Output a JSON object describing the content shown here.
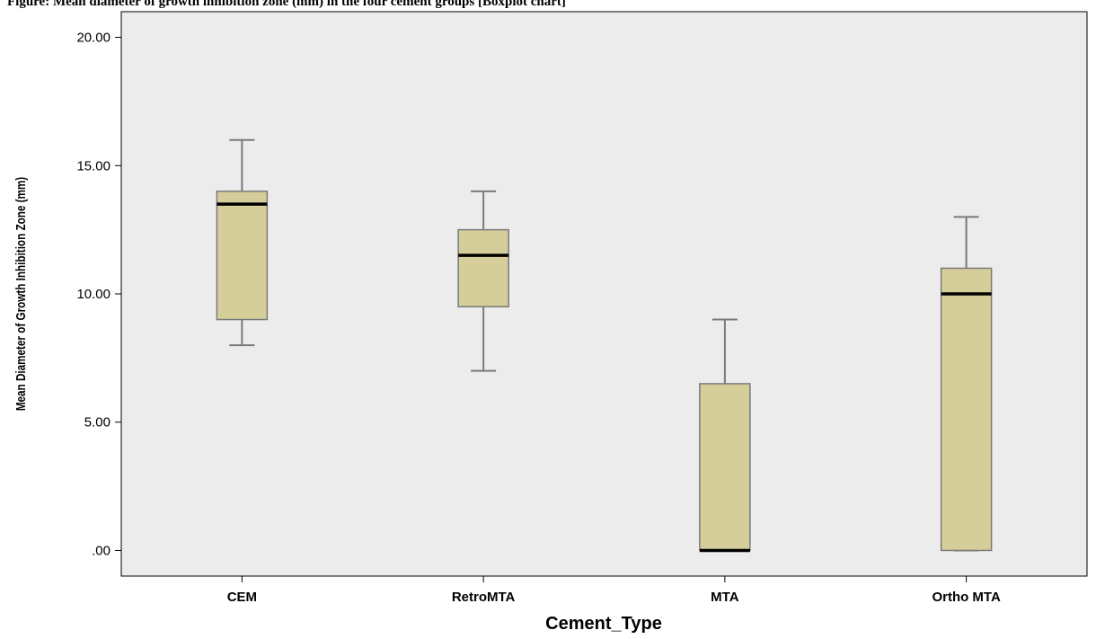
{
  "caption": "Figure: Mean diameter of growth inhibition zone (mm) in the four cement groups [Boxplot chart]",
  "chart_data": {
    "type": "boxplot",
    "xlabel": "Cement_Type",
    "ylabel": "Mean Diameter of Growth Inhibition Zone  (mm)",
    "ylim": [
      -1,
      21
    ],
    "yticks": [
      {
        "value": 0,
        "label": ".00"
      },
      {
        "value": 5,
        "label": "5.00"
      },
      {
        "value": 10,
        "label": "10.00"
      },
      {
        "value": 15,
        "label": "15.00"
      },
      {
        "value": 20,
        "label": "20.00"
      }
    ],
    "categories": [
      "CEM",
      "RetroMTA",
      "MTA",
      "Ortho MTA"
    ],
    "boxes": [
      {
        "category": "CEM",
        "min": 8,
        "q1": 9,
        "median": 13.5,
        "q3": 14,
        "max": 16
      },
      {
        "category": "RetroMTA",
        "min": 7,
        "q1": 9.5,
        "median": 11.5,
        "q3": 12.5,
        "max": 14
      },
      {
        "category": "MTA",
        "min": 0,
        "q1": 0,
        "median": 0,
        "q3": 6.5,
        "max": 9
      },
      {
        "category": "Ortho MTA",
        "min": 0,
        "q1": 0,
        "median": 10,
        "q3": 11,
        "max": 13
      }
    ],
    "colors": {
      "plot_background": "#ececec",
      "box_fill": "#d5cd9a",
      "box_stroke": "#7a7a7a",
      "median": "#000000"
    },
    "grid": false
  }
}
